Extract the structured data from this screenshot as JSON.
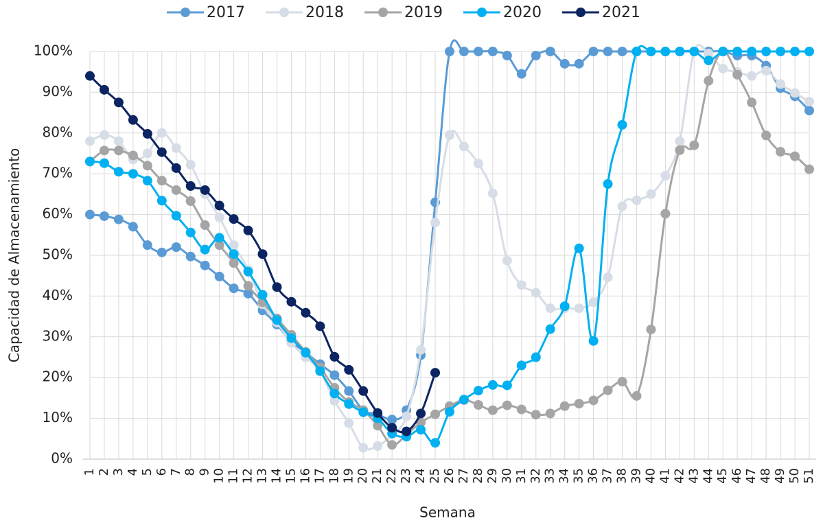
{
  "chart_data": {
    "type": "line",
    "x_label": "Semana",
    "y_label": "Capacidad de Almacenamiento",
    "categories": [
      "1",
      "2",
      "3",
      "4",
      "5",
      "6",
      "7",
      "8",
      "9",
      "10",
      "11",
      "12",
      "13",
      "14",
      "15",
      "16",
      "17",
      "18",
      "19",
      "20",
      "21",
      "22",
      "23",
      "24",
      "25",
      "26",
      "27",
      "28",
      "29",
      "30",
      "31",
      "32",
      "33",
      "34",
      "35",
      "36",
      "37",
      "38",
      "39",
      "40",
      "41",
      "42",
      "43",
      "44",
      "45",
      "46",
      "47",
      "48",
      "49",
      "50",
      "51"
    ],
    "ylim": [
      0,
      100
    ],
    "yticks": [
      {
        "value": 0,
        "label": "0%"
      },
      {
        "value": 10,
        "label": "10%"
      },
      {
        "value": 20,
        "label": "20%"
      },
      {
        "value": 30,
        "label": "30%"
      },
      {
        "value": 40,
        "label": "40%"
      },
      {
        "value": 50,
        "label": "50%"
      },
      {
        "value": 60,
        "label": "60%"
      },
      {
        "value": 70,
        "label": "70%"
      },
      {
        "value": 80,
        "label": "80%"
      },
      {
        "value": 90,
        "label": "90%"
      },
      {
        "value": 100,
        "label": "100%"
      }
    ],
    "grid": true,
    "legend": "top",
    "series": [
      {
        "name": "2017",
        "color": "#5b9bd5",
        "values": [
          60,
          59.6,
          58.8,
          57,
          52.5,
          50.7,
          52,
          49.7,
          47.5,
          44.8,
          41.9,
          40.6,
          36.5,
          33,
          28.8,
          26.2,
          23.3,
          20.6,
          16.7,
          12,
          11,
          9.7,
          12,
          25.5,
          63,
          100,
          100,
          100,
          100,
          99,
          94.5,
          99,
          100,
          97,
          97,
          100,
          100,
          100,
          100,
          100,
          100,
          100,
          100,
          100,
          100,
          99,
          99,
          96.5,
          91,
          89,
          85.5
        ]
      },
      {
        "name": "2018",
        "color": "#d6dde6",
        "values": [
          78,
          79.5,
          78,
          73.5,
          75,
          80,
          76.3,
          72.2,
          65,
          59.3,
          52.5,
          46.5,
          38,
          33.5,
          28.5,
          25,
          21.5,
          14.3,
          8.8,
          2.8,
          3.2,
          6,
          10.5,
          26.8,
          58,
          79.5,
          76.7,
          72.5,
          65.2,
          48.7,
          42.7,
          40.8,
          37,
          37,
          37,
          38.5,
          44.6,
          62,
          63.5,
          65,
          69.5,
          78,
          100,
          99.5,
          95.8,
          95,
          94,
          95.3,
          92,
          89.8,
          87.7
        ]
      },
      {
        "name": "2019",
        "color": "#a5a5a5",
        "values": [
          73,
          75.7,
          75.7,
          74.5,
          72,
          68.3,
          66,
          63.3,
          57.4,
          52.5,
          48.1,
          42.5,
          38.5,
          34.5,
          30.5,
          26.3,
          22.5,
          17.5,
          14,
          12,
          8.2,
          3.5,
          6,
          9,
          11,
          13,
          14.5,
          13.3,
          12,
          13.2,
          12.2,
          10.9,
          11.2,
          13,
          13.6,
          14.4,
          16.9,
          19,
          15.5,
          31.8,
          60.2,
          75.8,
          77,
          92.8,
          100,
          94.3,
          87.5,
          79.4,
          75.4,
          74.3,
          71.1
        ]
      },
      {
        "name": "2020",
        "color": "#00b0f0",
        "values": [
          73,
          72.6,
          70.5,
          70,
          68.3,
          63.4,
          59.7,
          55.6,
          51.4,
          54.3,
          50.3,
          46,
          40.3,
          34.1,
          29.7,
          26.1,
          21.6,
          16.1,
          13.5,
          11.5,
          10,
          6.3,
          5.5,
          7.2,
          4,
          11.6,
          14.6,
          16.8,
          18.2,
          18.1,
          23,
          25,
          31.9,
          37.5,
          51.7,
          29,
          67.5,
          82,
          100,
          100,
          100,
          100,
          100,
          97.8,
          100,
          100,
          100,
          100,
          100,
          100,
          100
        ]
      },
      {
        "name": "2021",
        "color": "#0c2461",
        "values": [
          94,
          90.6,
          87.5,
          83.2,
          79.8,
          75.3,
          71.4,
          67,
          66,
          62.2,
          58.9,
          56.1,
          50.3,
          42.2,
          38.6,
          35.9,
          32.6,
          25.1,
          21.9,
          16.7,
          11.3,
          7.7,
          6.8,
          11.2,
          21.2,
          null,
          null,
          null,
          null,
          null,
          null,
          null,
          null,
          null,
          null,
          null,
          null,
          null,
          null,
          null,
          null,
          null,
          null,
          null,
          null,
          null,
          null,
          null,
          null,
          null,
          null
        ]
      }
    ]
  }
}
